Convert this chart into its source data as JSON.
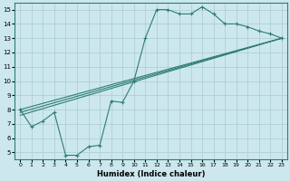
{
  "title": "",
  "xlabel": "Humidex (Indice chaleur)",
  "xlim": [
    -0.5,
    23.5
  ],
  "ylim": [
    4.5,
    15.5
  ],
  "xticks": [
    0,
    1,
    2,
    3,
    4,
    5,
    6,
    7,
    8,
    9,
    10,
    11,
    12,
    13,
    14,
    15,
    16,
    17,
    18,
    19,
    20,
    21,
    22,
    23
  ],
  "yticks": [
    5,
    6,
    7,
    8,
    9,
    10,
    11,
    12,
    13,
    14,
    15
  ],
  "bg_color": "#cce8ee",
  "grid_color": "#aacccc",
  "line_color": "#2e7d6e",
  "main_line": {
    "x": [
      0,
      1,
      2,
      3,
      4,
      5,
      6,
      7,
      8,
      9,
      10,
      11,
      12,
      13,
      14,
      15,
      16,
      17,
      18,
      19,
      20,
      21,
      22,
      23
    ],
    "y": [
      8.0,
      6.8,
      7.2,
      7.8,
      4.8,
      4.8,
      5.4,
      5.5,
      8.6,
      8.5,
      10.0,
      13.0,
      15.0,
      15.0,
      14.7,
      14.7,
      15.2,
      14.7,
      14.0,
      14.0,
      13.8,
      13.5,
      13.3,
      13.0
    ]
  },
  "trend_lines": [
    {
      "x": [
        0,
        23
      ],
      "y": [
        7.6,
        13.0
      ]
    },
    {
      "x": [
        0,
        23
      ],
      "y": [
        7.8,
        13.0
      ]
    },
    {
      "x": [
        0,
        23
      ],
      "y": [
        8.0,
        13.0
      ]
    }
  ]
}
